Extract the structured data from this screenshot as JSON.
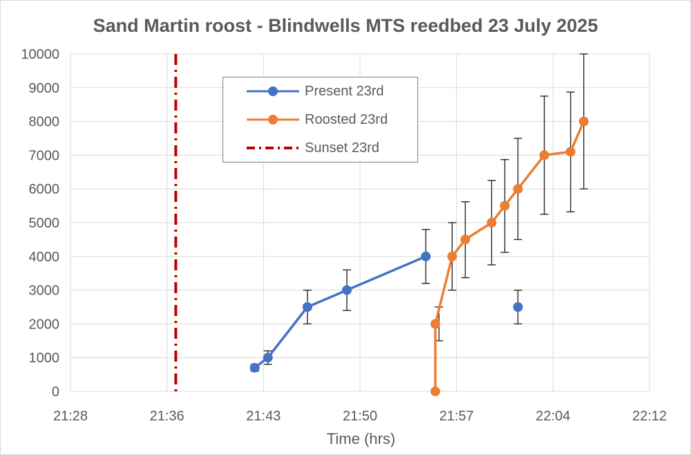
{
  "chart_data": {
    "type": "line",
    "title": "Sand Martin roost - Blindwells MTS reedbed 23 July 2025",
    "xlabel": "Time (hrs)",
    "ylabel": "",
    "x_ticks": [
      "21:28",
      "21:36",
      "21:43",
      "21:50",
      "21:57",
      "22:04",
      "22:12"
    ],
    "xlim": [
      "21:28",
      "22:12"
    ],
    "ylim": [
      0,
      10000
    ],
    "y_ticks": [
      "0",
      "1000",
      "2000",
      "3000",
      "4000",
      "5000",
      "6000",
      "7000",
      "8000",
      "9000",
      "10000"
    ],
    "grid": true,
    "legend_position": "top-left",
    "series": [
      {
        "name": "Present 23rd",
        "color": "#4472c4",
        "style": "line-markers",
        "points": [
          {
            "x": "21:42",
            "y": 700,
            "err_low": 600,
            "err_high": 800
          },
          {
            "x": "21:43",
            "y": 1000,
            "err_low": 800,
            "err_high": 1200
          },
          {
            "x": "21:46",
            "y": 2500,
            "err_low": 2000,
            "err_high": 3000
          },
          {
            "x": "21:49",
            "y": 3000,
            "err_low": 2400,
            "err_high": 3600
          },
          {
            "x": "21:55",
            "y": 4000,
            "err_low": 3200,
            "err_high": 4800
          },
          {
            "x": "22:02",
            "y": 2500,
            "err_low": 2000,
            "err_high": 3000,
            "isolated": true
          }
        ]
      },
      {
        "name": "Roosted 23rd",
        "color": "#ed7d31",
        "style": "line-markers",
        "points": [
          {
            "x": "21:56",
            "y": 0
          },
          {
            "x": "21:56",
            "y": 2000,
            "err_low": 1500,
            "err_high": 2500
          },
          {
            "x": "21:57",
            "y": 4000,
            "err_low": 3000,
            "err_high": 5000
          },
          {
            "x": "21:58",
            "y": 4500,
            "err_low": 3370,
            "err_high": 5620
          },
          {
            "x": "22:00",
            "y": 5000,
            "err_low": 3750,
            "err_high": 6250
          },
          {
            "x": "22:01",
            "y": 5500,
            "err_low": 4120,
            "err_high": 6870
          },
          {
            "x": "22:02",
            "y": 6000,
            "err_low": 4500,
            "err_high": 7500
          },
          {
            "x": "22:04",
            "y": 7000,
            "err_low": 5250,
            "err_high": 8750
          },
          {
            "x": "22:06",
            "y": 7100,
            "err_low": 5320,
            "err_high": 8870
          },
          {
            "x": "22:07",
            "y": 8000,
            "err_low": 6000,
            "err_high": 10000
          }
        ]
      },
      {
        "name": "Sunset 23rd",
        "color": "#c00000",
        "style": "dash-dot-vertical",
        "x": "21:36",
        "y_range": [
          0,
          10000
        ]
      }
    ]
  }
}
